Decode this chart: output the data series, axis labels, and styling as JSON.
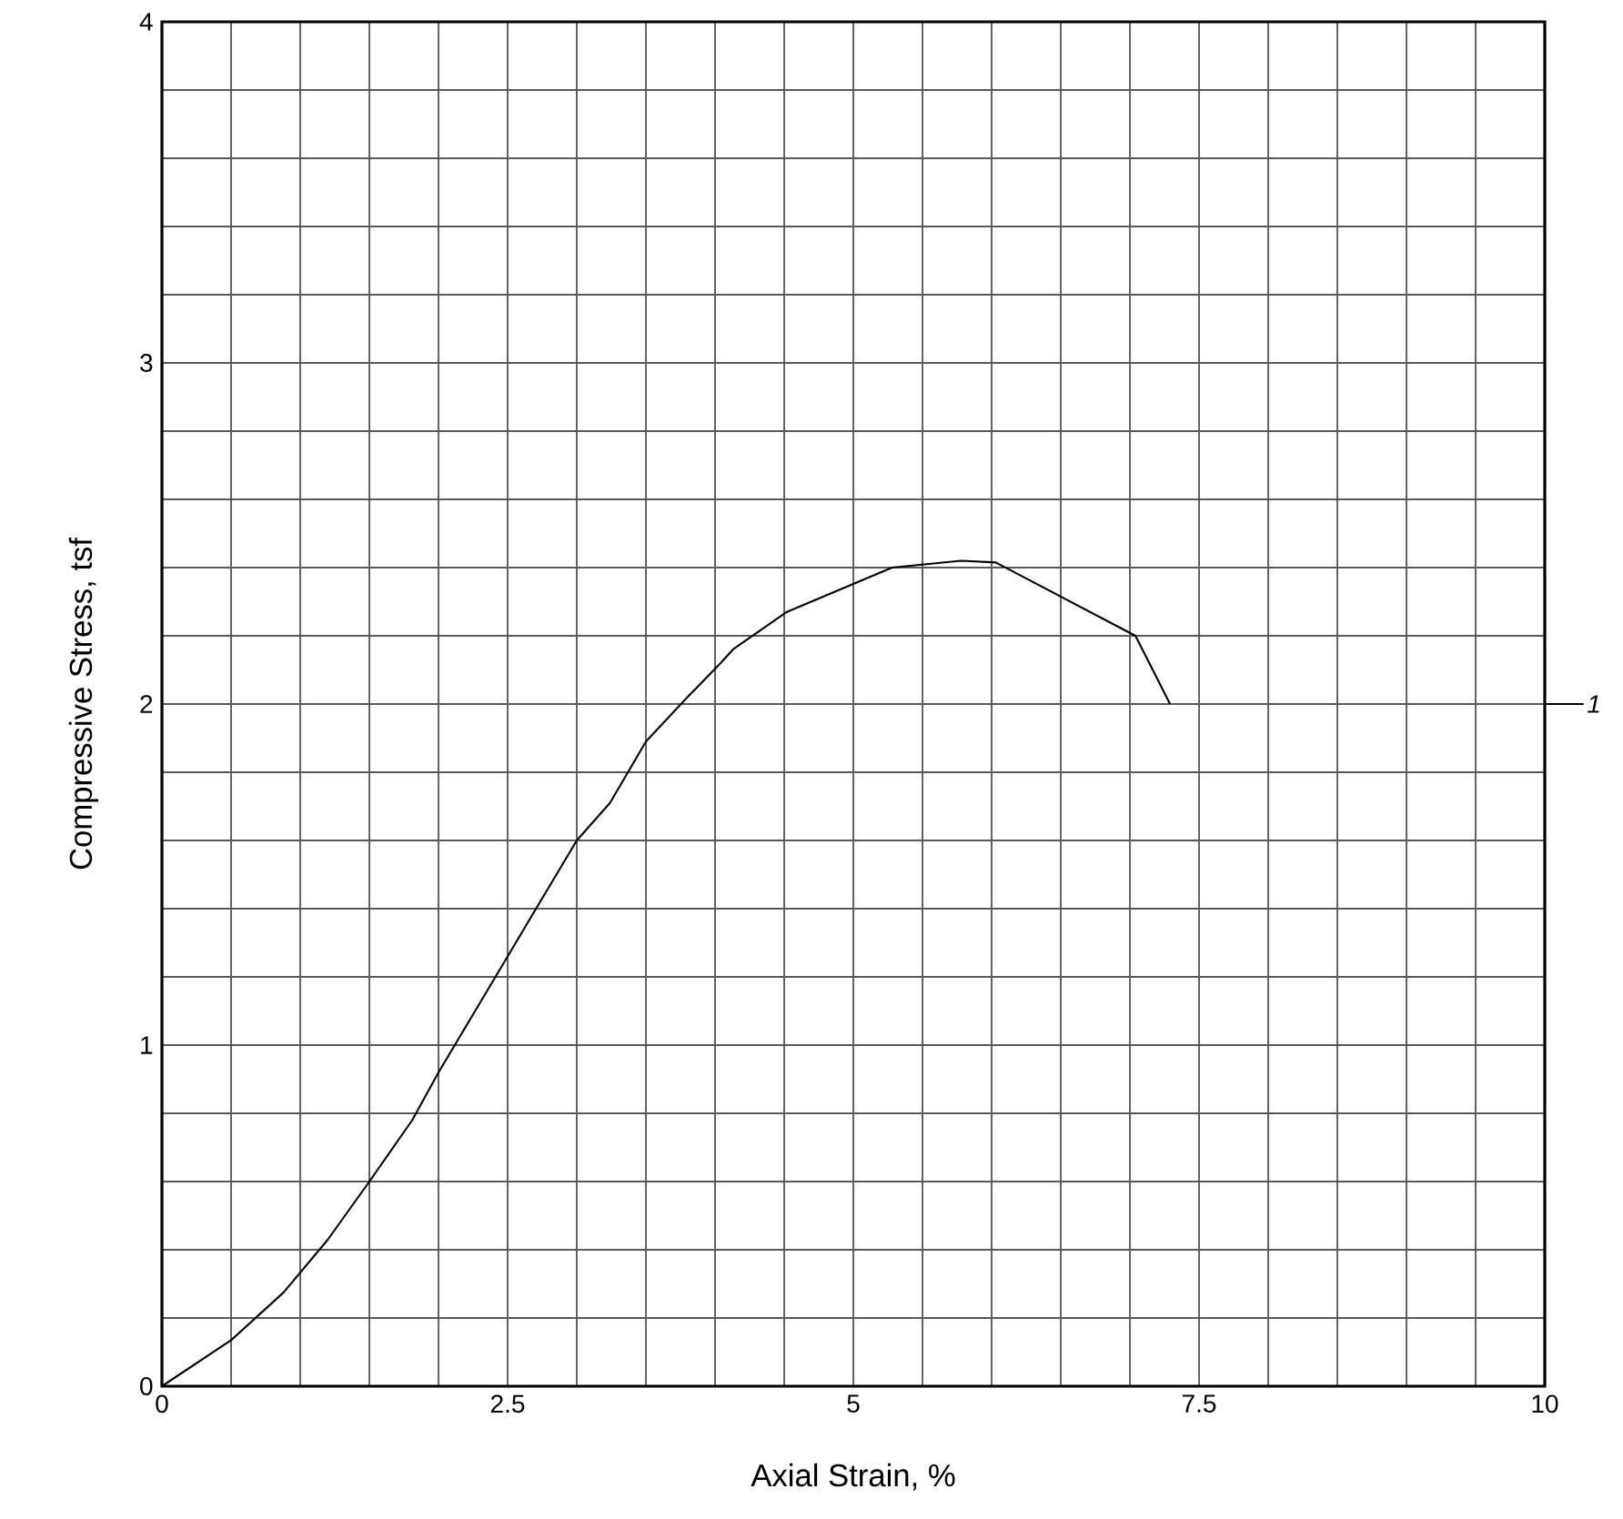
{
  "chart_data": {
    "type": "line",
    "xlabel": "Axial Strain, %",
    "ylabel": "Compressive Stress, tsf",
    "xlim": [
      0,
      10
    ],
    "ylim": [
      0,
      4
    ],
    "xticks": [
      0,
      {
        "value": 0.5,
        "label": null
      },
      {
        "value": 1,
        "label": null
      },
      {
        "value": 1.5,
        "label": null
      },
      {
        "value": 2,
        "label": null
      },
      2.5,
      {
        "value": 3,
        "label": null
      },
      {
        "value": 3.5,
        "label": null
      },
      {
        "value": 4,
        "label": null
      },
      {
        "value": 4.5,
        "label": null
      },
      5,
      {
        "value": 5.5,
        "label": null
      },
      {
        "value": 6,
        "label": null
      },
      {
        "value": 6.5,
        "label": null
      },
      {
        "value": 7,
        "label": null
      },
      7.5,
      {
        "value": 8,
        "label": null
      },
      {
        "value": 8.5,
        "label": null
      },
      {
        "value": 9,
        "label": null
      },
      {
        "value": 9.5,
        "label": null
      },
      10
    ],
    "yticks": [
      0,
      {
        "value": 0.2,
        "label": null
      },
      {
        "value": 0.4,
        "label": null
      },
      {
        "value": 0.6,
        "label": null
      },
      {
        "value": 0.8,
        "label": null
      },
      1,
      {
        "value": 1.2,
        "label": null
      },
      {
        "value": 1.4,
        "label": null
      },
      {
        "value": 1.6,
        "label": null
      },
      {
        "value": 1.8,
        "label": null
      },
      2,
      {
        "value": 2.2,
        "label": null
      },
      {
        "value": 2.4,
        "label": null
      },
      {
        "value": 2.6,
        "label": null
      },
      {
        "value": 2.8,
        "label": null
      },
      3,
      {
        "value": 3.2,
        "label": null
      },
      {
        "value": 3.4,
        "label": null
      },
      {
        "value": 3.6,
        "label": null
      },
      {
        "value": 3.8,
        "label": null
      },
      4
    ],
    "grid": true,
    "series": [
      {
        "name": "1",
        "color": "#000000",
        "x": [
          0,
          0.5,
          0.88,
          1.2,
          1.5,
          1.81,
          2.0,
          2.25,
          2.5,
          2.72,
          3.0,
          3.24,
          3.5,
          3.8,
          4.04,
          4.13,
          4.52,
          5.28,
          5.78,
          6.03,
          7.04,
          7.29
        ],
        "values": [
          0,
          0.135,
          0.275,
          0.43,
          0.6,
          0.78,
          0.92,
          1.09,
          1.26,
          1.41,
          1.6,
          1.71,
          1.89,
          2.02,
          2.12,
          2.16,
          2.27,
          2.4,
          2.42,
          2.415,
          2.2,
          2.0
        ]
      }
    ]
  }
}
